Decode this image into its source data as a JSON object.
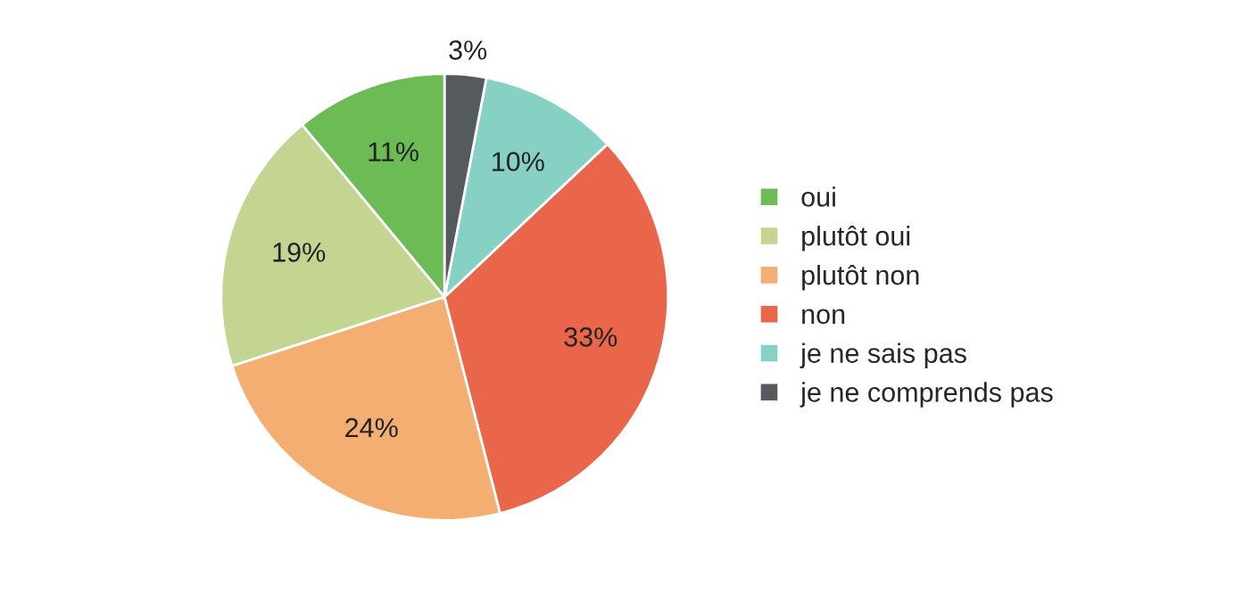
{
  "chart_data": {
    "type": "pie",
    "categories": [
      "oui",
      "plutôt oui",
      "plutôt non",
      "non",
      "je ne sais pas",
      "je ne comprends pas"
    ],
    "values": [
      11,
      19,
      24,
      33,
      10,
      3
    ],
    "value_labels": [
      "11%",
      "19%",
      "24%",
      "33%",
      "10%",
      "3%"
    ],
    "colors": [
      "#6cbb54",
      "#c3d590",
      "#f4ae72",
      "#e9664a",
      "#86d0c4",
      "#555a5e"
    ],
    "legend": "right"
  }
}
